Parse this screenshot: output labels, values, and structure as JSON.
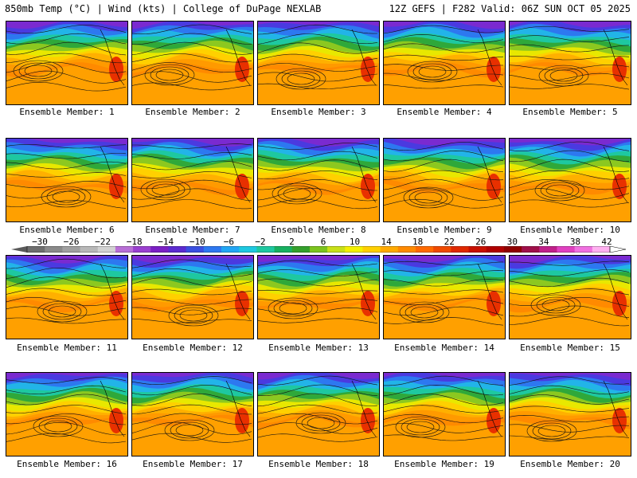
{
  "header": {
    "left": "850mb Temp (°C) | Wind (kts) | College of DuPage NEXLAB",
    "right": "12Z GEFS | F282 Valid: 06Z SUN OCT 05 2025"
  },
  "members": [
    "Ensemble Member: 1",
    "Ensemble Member: 2",
    "Ensemble Member: 3",
    "Ensemble Member: 4",
    "Ensemble Member: 5",
    "Ensemble Member: 6",
    "Ensemble Member: 7",
    "Ensemble Member: 8",
    "Ensemble Member: 9",
    "Ensemble Member: 10",
    "Ensemble Member: 11",
    "Ensemble Member: 12",
    "Ensemble Member: 13",
    "Ensemble Member: 14",
    "Ensemble Member: 15",
    "Ensemble Member: 16",
    "Ensemble Member: 17",
    "Ensemble Member: 18",
    "Ensemble Member: 19",
    "Ensemble Member: 20"
  ],
  "colorbar": {
    "labels": [
      "−30",
      "−26",
      "−22",
      "−18",
      "−14",
      "−10",
      "−6",
      "−2",
      "2",
      "6",
      "10",
      "14",
      "18",
      "22",
      "26",
      "30",
      "34",
      "38",
      "42"
    ],
    "colors": [
      "#6e6e6e",
      "#8a8a8a",
      "#a0a0a0",
      "#b8b8b8",
      "#d2d2d2",
      "#b86fd6",
      "#9a3fd0",
      "#7b1fc4",
      "#5b2bd0",
      "#3a4fe0",
      "#2d78f0",
      "#22a6f4",
      "#1ec8e0",
      "#1ec8a0",
      "#18b060",
      "#34a02c",
      "#7cc41e",
      "#c8e018",
      "#f4f000",
      "#ffd000",
      "#ffaa00",
      "#ff8a00",
      "#ff6a00",
      "#f04a00",
      "#e02800",
      "#c81000",
      "#b00000",
      "#900000",
      "#a0104a",
      "#c0208a",
      "#e040c0",
      "#f070e0",
      "#ffb0f0"
    ]
  }
}
